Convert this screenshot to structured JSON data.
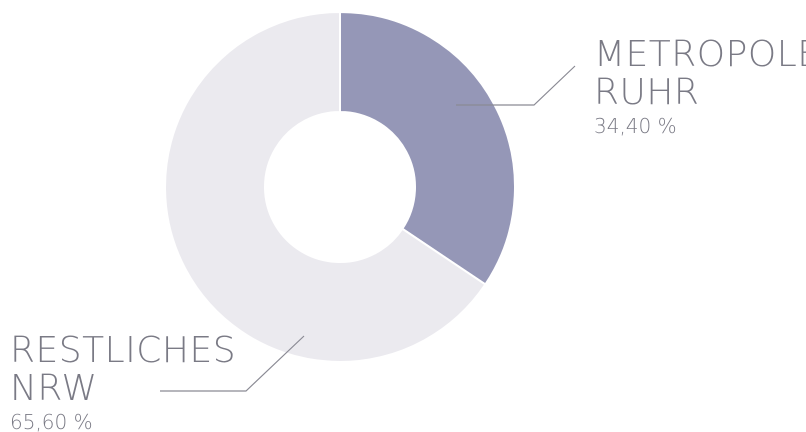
{
  "chart_data": {
    "type": "pie",
    "variant": "donut",
    "categories": [
      "METROPOLE RUHR",
      "RESTLICHES NRW"
    ],
    "values": [
      34.4,
      65.6
    ],
    "value_labels": [
      "34,40 %",
      "65,60 %"
    ],
    "colors": [
      "#9597b7",
      "#ebeaef"
    ],
    "title": "",
    "start_angle": "12 o'clock, clockwise"
  },
  "labels": {
    "ruhr": {
      "title": "METROPOLE\nRUHR",
      "value": "34,40 %"
    },
    "nrw": {
      "title": "RESTLICHES\nNRW",
      "value": "65,60 %"
    }
  }
}
